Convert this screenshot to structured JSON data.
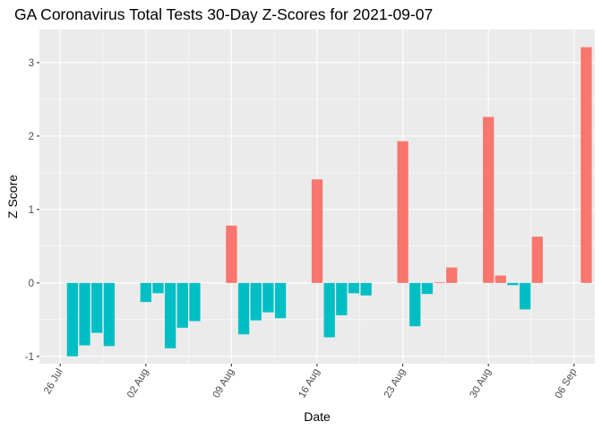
{
  "chart_data": {
    "type": "bar",
    "title": "GA Coronavirus Total Tests 30-Day Z-Scores for 2021-09-07",
    "xlabel": "Date",
    "ylabel": "Z Score",
    "ylim": [
      -1.1,
      3.45
    ],
    "y_ticks": [
      -1,
      0,
      1,
      2,
      3
    ],
    "x_tick_labels": [
      "26 Jul",
      "02 Aug",
      "09 Aug",
      "16 Aug",
      "23 Aug",
      "30 Aug",
      "06 Sep"
    ],
    "x_tick_day_index": [
      0,
      7,
      14,
      21,
      28,
      35,
      42
    ],
    "day_range": [
      -1.7,
      43.7
    ],
    "first_day_index": 1,
    "colors": {
      "positive": "#F8766D",
      "negative": "#00BFC4",
      "panel": "#EBEBEB",
      "grid": "#FFFFFF"
    },
    "grid": true,
    "legend": "none",
    "values": [
      -1.0,
      -0.85,
      -0.68,
      -0.86,
      null,
      null,
      -0.26,
      -0.14,
      -0.89,
      -0.61,
      -0.52,
      null,
      null,
      0.78,
      -0.7,
      -0.51,
      -0.4,
      -0.48,
      null,
      null,
      1.41,
      -0.74,
      -0.44,
      -0.14,
      -0.17,
      null,
      null,
      1.93,
      -0.59,
      -0.15,
      0.01,
      0.21,
      null,
      null,
      2.26,
      0.1,
      -0.03,
      -0.36,
      0.63,
      null,
      null,
      null,
      3.21
    ]
  }
}
